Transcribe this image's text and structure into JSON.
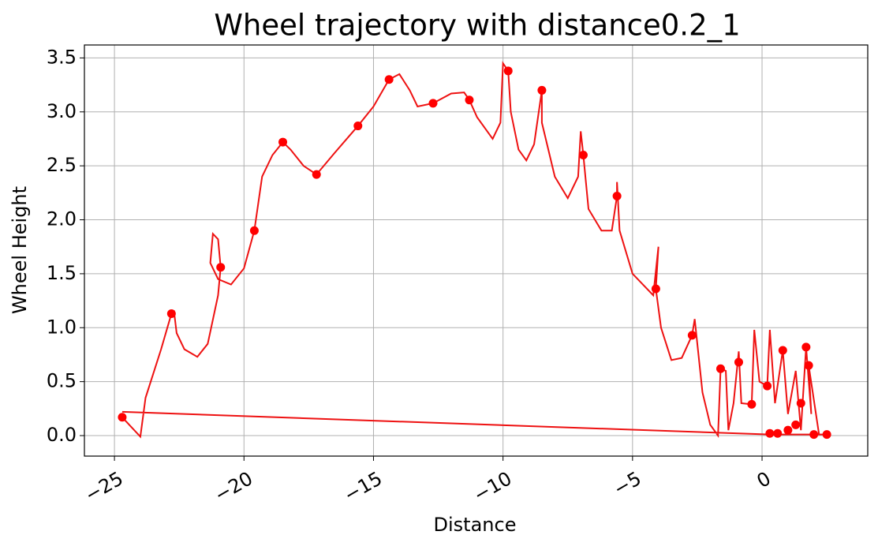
{
  "chart_data": {
    "type": "line",
    "title": "Wheel trajectory with distance0.2_1",
    "xlabel": "Distance",
    "ylabel": "Wheel Height",
    "color": "#ee1111",
    "marker_color": "#ff0000",
    "grid": true,
    "xlim": [
      -26.16,
      4.08
    ],
    "ylim": [
      -0.19,
      3.62
    ],
    "xticks": [
      {
        "value": -25,
        "label": "−25"
      },
      {
        "value": -20,
        "label": "−20"
      },
      {
        "value": -15,
        "label": "−15"
      },
      {
        "value": -10,
        "label": "−10"
      },
      {
        "value": -5,
        "label": "−5"
      },
      0
    ],
    "yticks": [
      {
        "value": 0,
        "label": "0.0"
      },
      0.5,
      {
        "value": 1,
        "label": "1.0"
      },
      1.5,
      {
        "value": 2,
        "label": "2.0"
      },
      2.5,
      {
        "value": 3,
        "label": "3.0"
      },
      3.5
    ],
    "x": [
      -24.7,
      -24.0,
      -23.8,
      -23.2,
      -22.8,
      -22.7,
      -22.6,
      -22.3,
      -21.8,
      -21.4,
      -21.0,
      -20.9,
      -21.0,
      -21.2,
      -21.3,
      -21.0,
      -20.5,
      -20.0,
      -19.6,
      -19.3,
      -18.9,
      -18.5,
      -18.2,
      -17.7,
      -17.2,
      -16.5,
      -15.6,
      -15.0,
      -14.4,
      -14.0,
      -13.6,
      -13.3,
      -12.7,
      -12.0,
      -11.5,
      -11.3,
      -11.0,
      -10.4,
      -10.1,
      -10.0,
      -9.8,
      -9.7,
      -9.4,
      -9.1,
      -8.8,
      -8.5,
      -8.5,
      -8.0,
      -7.5,
      -7.1,
      -7.0,
      -6.9,
      -6.7,
      -6.2,
      -5.8,
      -5.6,
      -5.6,
      -5.5,
      -5.0,
      -4.2,
      -4.0,
      -4.1,
      -3.9,
      -3.5,
      -3.1,
      -2.7,
      -2.6,
      -2.3,
      -2.0,
      -1.7,
      -1.6,
      -1.4,
      -1.3,
      -1.1,
      -0.9,
      -0.8,
      -0.4,
      -0.3,
      -0.1,
      0.2,
      0.3,
      0.5,
      0.8,
      1.0,
      1.3,
      1.5,
      1.7,
      1.9,
      1.8,
      2.2,
      2.6,
      0.3,
      -24.7
    ],
    "y": [
      0.17,
      -0.01,
      0.35,
      0.8,
      1.13,
      1.15,
      0.95,
      0.8,
      0.73,
      0.85,
      1.3,
      1.56,
      1.82,
      1.87,
      1.6,
      1.45,
      1.4,
      1.55,
      1.9,
      2.4,
      2.6,
      2.72,
      2.65,
      2.5,
      2.42,
      2.62,
      2.87,
      3.05,
      3.3,
      3.35,
      3.2,
      3.05,
      3.08,
      3.17,
      3.18,
      3.11,
      2.95,
      2.75,
      2.9,
      3.45,
      3.38,
      3.0,
      2.65,
      2.55,
      2.7,
      3.2,
      2.9,
      2.4,
      2.2,
      2.4,
      2.82,
      2.6,
      2.1,
      1.9,
      1.9,
      2.22,
      2.35,
      1.9,
      1.5,
      1.3,
      1.75,
      1.36,
      1.0,
      0.7,
      0.72,
      0.93,
      1.08,
      0.4,
      0.1,
      0.0,
      0.62,
      0.6,
      0.05,
      0.3,
      0.78,
      0.3,
      0.29,
      0.98,
      0.5,
      0.46,
      0.98,
      0.3,
      0.79,
      0.2,
      0.6,
      0.05,
      0.82,
      0.2,
      0.65,
      0.01,
      0.01,
      0.01,
      0.22
    ],
    "markers": {
      "x": [
        -24.7,
        -22.8,
        -20.9,
        -19.6,
        -18.5,
        -17.2,
        -15.6,
        -14.4,
        -12.7,
        -11.3,
        -9.8,
        -8.5,
        -6.9,
        -5.6,
        -4.1,
        -2.7,
        -1.6,
        -0.9,
        -0.4,
        0.2,
        0.8,
        1.7,
        1.8,
        0.3,
        0.6,
        1.0,
        1.3,
        1.5,
        2.0,
        2.5
      ],
      "y": [
        0.17,
        1.13,
        1.56,
        1.9,
        2.72,
        2.42,
        2.87,
        3.3,
        3.08,
        3.11,
        3.38,
        3.2,
        2.6,
        2.22,
        1.36,
        0.93,
        0.62,
        0.68,
        0.29,
        0.46,
        0.79,
        0.82,
        0.65,
        0.02,
        0.02,
        0.05,
        0.1,
        0.3,
        0.01,
        0.01
      ]
    }
  }
}
